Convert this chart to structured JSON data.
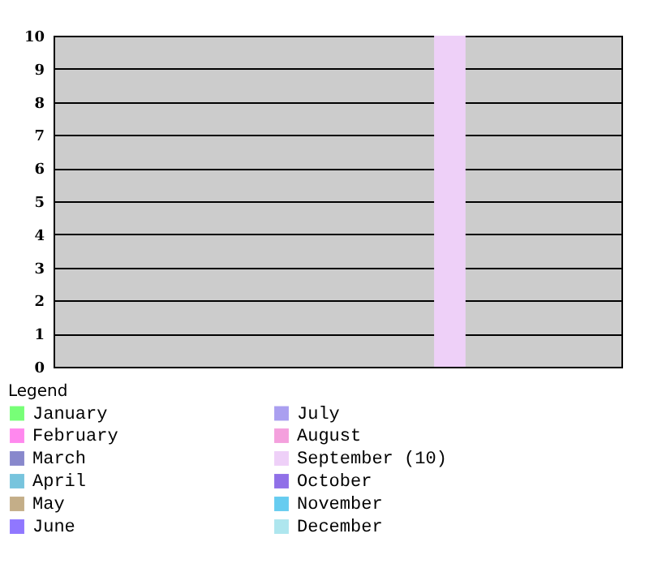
{
  "chart_data": {
    "type": "bar",
    "legend_title": "Legend",
    "categories": [
      null
    ],
    "series": [
      {
        "name": "January",
        "color": "#77ff77",
        "values": [
          0
        ]
      },
      {
        "name": "February",
        "color": "#ff88ee",
        "values": [
          0
        ]
      },
      {
        "name": "March",
        "color": "#8888cc",
        "values": [
          0
        ]
      },
      {
        "name": "April",
        "color": "#77c4dd",
        "values": [
          0
        ]
      },
      {
        "name": "May",
        "color": "#c4ae88",
        "values": [
          0
        ]
      },
      {
        "name": "June",
        "color": "#9077ff",
        "values": [
          0
        ]
      },
      {
        "name": "July",
        "color": "#aa9ff0",
        "values": [
          0
        ]
      },
      {
        "name": "August",
        "color": "#f4a0dd",
        "values": [
          0
        ]
      },
      {
        "name": "September (10)",
        "color": "#eed0f8",
        "values": [
          10
        ]
      },
      {
        "name": "October",
        "color": "#9070e8",
        "values": [
          0
        ]
      },
      {
        "name": "November",
        "color": "#66ccf0",
        "values": [
          0
        ]
      },
      {
        "name": "December",
        "color": "#aee6ee",
        "values": [
          0
        ]
      }
    ],
    "ylim": [
      0,
      10
    ],
    "yticks": [
      0,
      1,
      2,
      3,
      4,
      5,
      6,
      7,
      8,
      9,
      10
    ],
    "grid": "y",
    "legend": "bottom left",
    "tick_labels": "y"
  }
}
